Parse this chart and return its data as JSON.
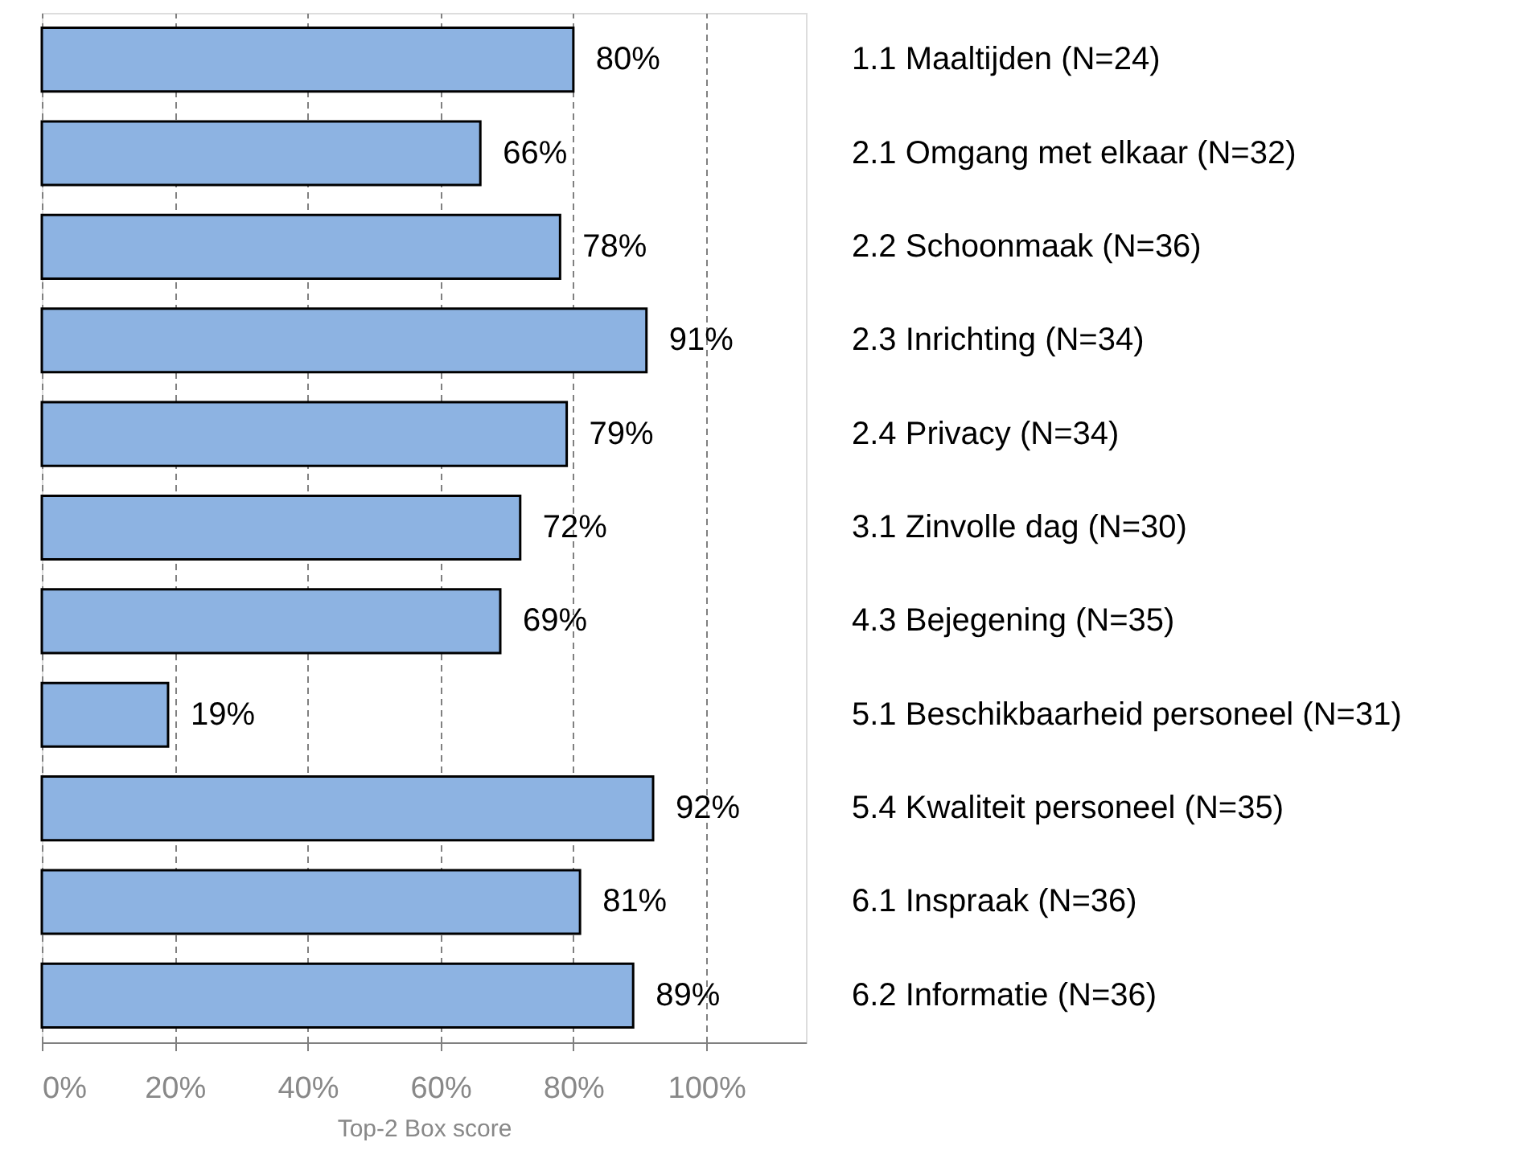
{
  "chart_data": {
    "type": "bar",
    "orientation": "horizontal",
    "xlabel": "Top-2 Box score",
    "categories": [
      "1.1 Maaltijden (N=24)",
      "2.1 Omgang met elkaar (N=32)",
      "2.2 Schoonmaak (N=36)",
      "2.3 Inrichting (N=34)",
      "2.4 Privacy (N=34)",
      "3.1 Zinvolle dag (N=30)",
      "4.3 Bejegening (N=35)",
      "5.1 Beschikbaarheid personeel (N=31)",
      "5.4 Kwaliteit personeel (N=35)",
      "6.1 Inspraak (N=36)",
      "6.2 Informatie (N=36)"
    ],
    "values": [
      80,
      66,
      78,
      91,
      79,
      72,
      69,
      19,
      92,
      81,
      89
    ],
    "value_labels": [
      "80%",
      "66%",
      "78%",
      "91%",
      "79%",
      "72%",
      "69%",
      "19%",
      "92%",
      "81%",
      "89%"
    ],
    "color": "#8db3e2",
    "xlim": [
      0,
      115
    ],
    "xticks": [
      {
        "value": 0,
        "label": "0%"
      },
      {
        "value": 20,
        "label": "20%"
      },
      {
        "value": 40,
        "label": "40%"
      },
      {
        "value": 60,
        "label": "60%"
      },
      {
        "value": 80,
        "label": "80%"
      },
      {
        "value": 100,
        "label": "100%"
      }
    ],
    "grid": "x"
  }
}
